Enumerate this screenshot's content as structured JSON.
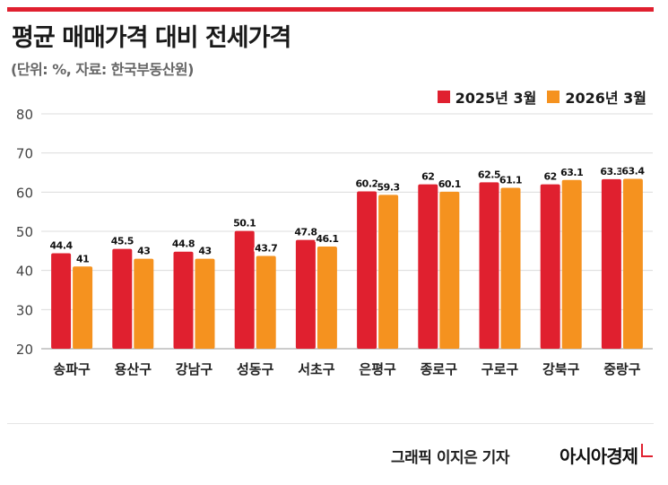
{
  "header": {
    "title": "평균 매매가격 대비 전세가격",
    "subtitle": "(단위: %, 자료: 한국부동산원)"
  },
  "footer": {
    "credit": "그래픽  이지은 기자",
    "brand": "아시아경제"
  },
  "colors": {
    "accent": "#e0202f",
    "series_2025": "#e0202f",
    "series_2026": "#f5921f"
  },
  "chart_data": {
    "type": "bar",
    "categories": [
      "송파구",
      "용산구",
      "강남구",
      "성동구",
      "서초구",
      "은평구",
      "종로구",
      "구로구",
      "강북구",
      "중랑구"
    ],
    "series": [
      {
        "name": "2025년 3월",
        "values": [
          44.4,
          45.5,
          44.8,
          50.1,
          47.8,
          60.2,
          62,
          62.5,
          62,
          63.3
        ]
      },
      {
        "name": "2026년 3월",
        "values": [
          41,
          43,
          43,
          43.7,
          46.1,
          59.3,
          60.1,
          61.1,
          63.1,
          63.4
        ]
      }
    ],
    "ylim": [
      20,
      80
    ],
    "yticks": [
      20,
      30,
      40,
      50,
      60,
      70,
      80
    ],
    "grid": true,
    "legend": "top-right",
    "data_labels": true
  }
}
